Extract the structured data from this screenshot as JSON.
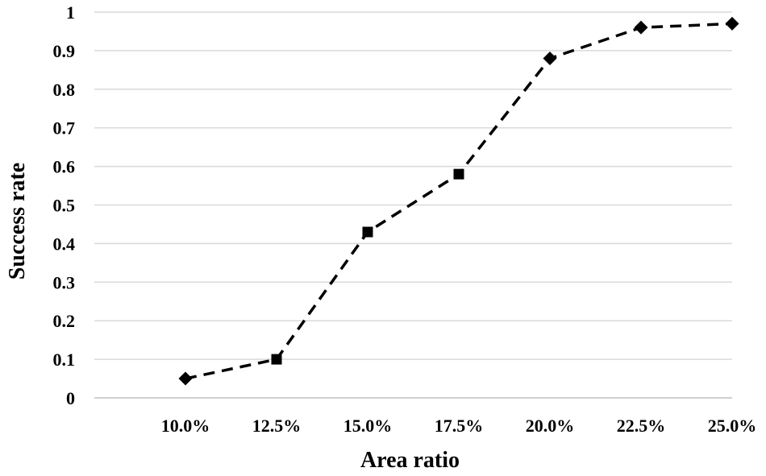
{
  "chart_data": {
    "type": "line",
    "title": "",
    "xlabel": "Area ratio",
    "ylabel": "Success rate",
    "categories": [
      "10.0%",
      "12.5%",
      "15.0%",
      "17.5%",
      "20.0%",
      "22.5%",
      "25.0%"
    ],
    "y_tick_labels": [
      "0",
      "0.1",
      "0.2",
      "0.3",
      "0.4",
      "0.5",
      "0.6",
      "0.7",
      "0.8",
      "0.9",
      "1"
    ],
    "ylim": [
      0,
      1
    ],
    "grid": true,
    "legend": "none",
    "series": [
      {
        "values": [
          0.05,
          0.1,
          0.43,
          0.58,
          0.88,
          0.96,
          0.97
        ],
        "markers": [
          "diamond",
          "square",
          "square",
          "square",
          "diamond",
          "diamond",
          "diamond"
        ],
        "line_style": "dashed",
        "color": "#000000"
      }
    ]
  }
}
